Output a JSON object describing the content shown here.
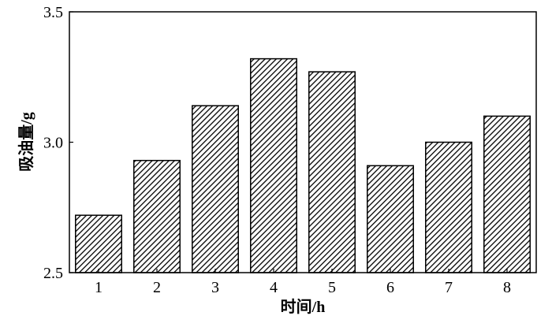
{
  "chart_data": {
    "type": "bar",
    "xlabel": "时间/h",
    "ylabel": "吸油量/g",
    "categories": [
      "1",
      "2",
      "3",
      "4",
      "5",
      "6",
      "7",
      "8"
    ],
    "values": [
      2.72,
      2.93,
      3.14,
      3.32,
      3.27,
      2.91,
      3.0,
      3.1
    ],
    "ylim": [
      2.5,
      3.5
    ],
    "yticks": [
      "2.5",
      "3.0",
      "3.5"
    ],
    "grid": false,
    "bar_fill": "hatched",
    "bar_color": "#000000",
    "background": "#ffffff"
  }
}
